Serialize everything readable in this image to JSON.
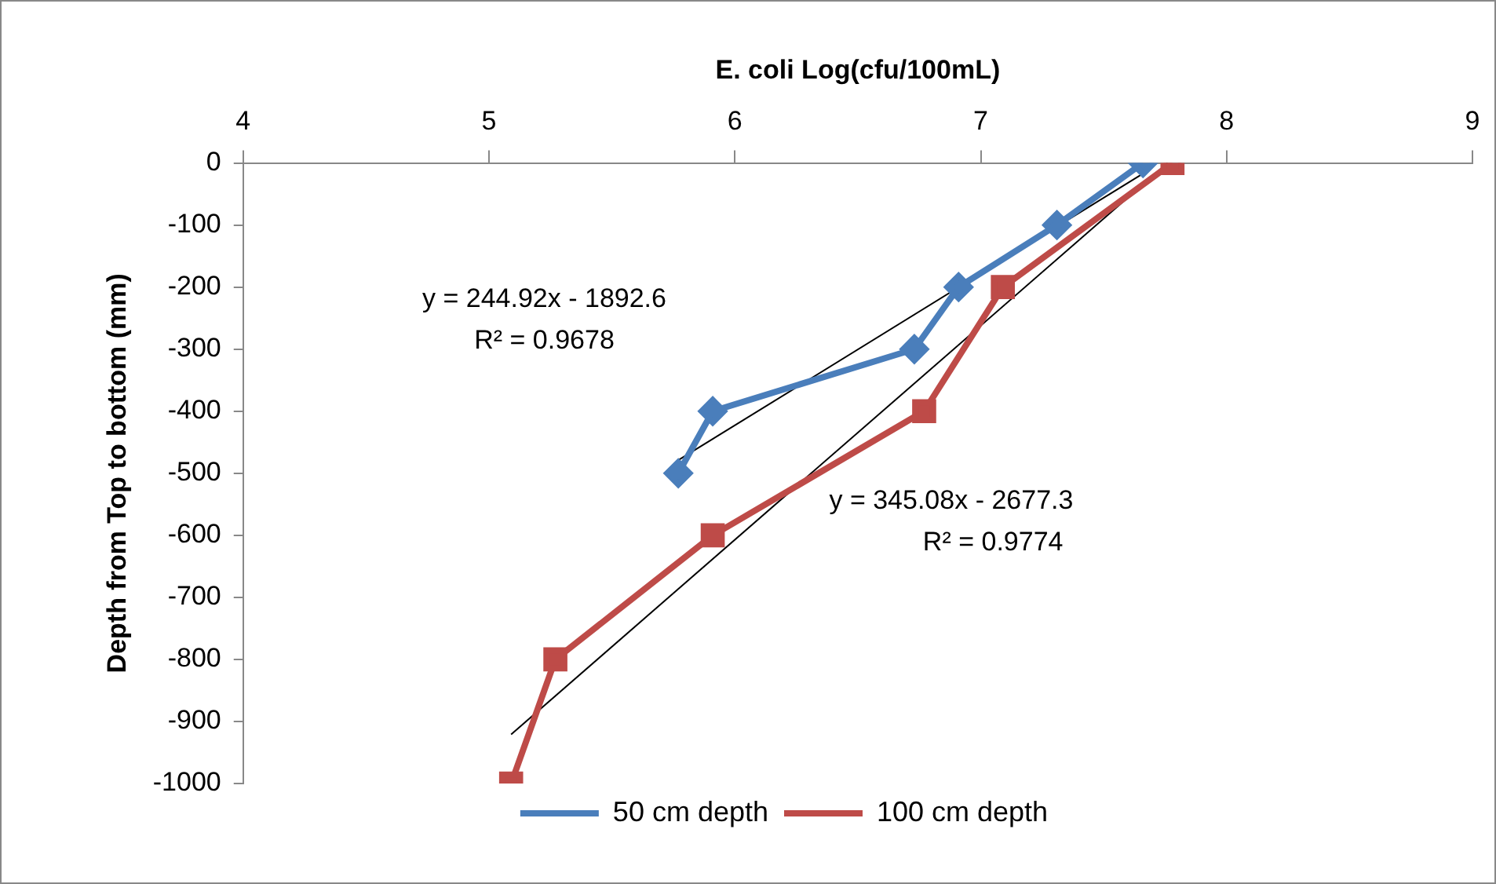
{
  "chart_data": {
    "type": "line",
    "xlabel": "E. coli Log(cfu/100mL)",
    "ylabel": "Depth from Top to bottom (mm)",
    "xlim": [
      4,
      9
    ],
    "xticks": [
      4,
      5,
      6,
      7,
      8,
      9
    ],
    "ylim": [
      -1000,
      0
    ],
    "yticks": [
      0,
      -100,
      -200,
      -300,
      -400,
      -500,
      -600,
      -700,
      -800,
      -900,
      -1000
    ],
    "grid": false,
    "legend": "bottom",
    "line_style": "solid",
    "series": [
      {
        "name": "50 cm depth",
        "color": "#4a7ebb",
        "marker": "diamond",
        "x": [
          7.66,
          7.31,
          6.91,
          6.73,
          5.91,
          5.77
        ],
        "values": [
          0,
          -100,
          -200,
          -300,
          -400,
          -500
        ]
      },
      {
        "name": "100 cm depth",
        "color": "#be4b48",
        "marker": "square",
        "x": [
          7.78,
          7.09,
          6.77,
          5.91,
          5.27,
          5.09
        ],
        "values": [
          0,
          -200,
          -400,
          -600,
          -800,
          -1000
        ]
      },
      {
        "color": "#000000",
        "marker": "none",
        "x": [
          5.77,
          7.66
        ],
        "values": [
          -479,
          -17
        ]
      },
      {
        "color": "#000000",
        "marker": "none",
        "x": [
          5.09,
          7.76
        ],
        "values": [
          -921,
          0
        ]
      }
    ],
    "annotations": [
      "y = 244.92x - 1892.6",
      "R² = 0.9678",
      "y = 345.08x - 2677.3",
      "R² = 0.9774"
    ]
  }
}
